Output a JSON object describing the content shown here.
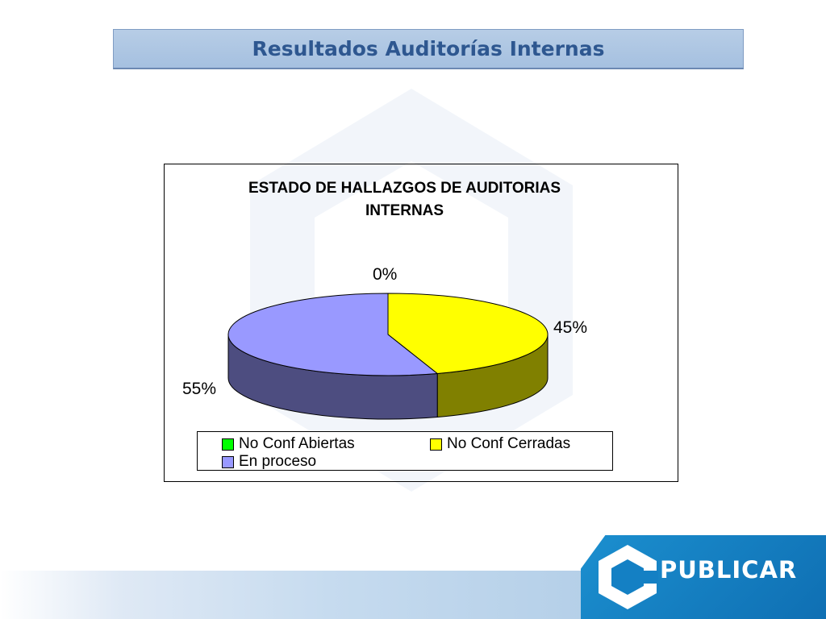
{
  "slide": {
    "title": "Resultados Auditorías Internas"
  },
  "brand": {
    "logo_text": "PUBLICAR",
    "colors": {
      "title_text": "#2e5790",
      "title_bar": "#a5c0e0",
      "logo_blue": "#1b8fcf"
    }
  },
  "chart_data": {
    "type": "pie",
    "title_lines": [
      "ESTADO DE HALLAZGOS DE AUDITORIAS",
      "INTERNAS"
    ],
    "three_d": true,
    "slices": [
      {
        "name": "No Conf Abiertas",
        "value": 0,
        "label": "0%",
        "color": "#00ff00",
        "side_color": "#008000"
      },
      {
        "name": "No Conf Cerradas",
        "value": 45,
        "label": "45%",
        "color": "#ffff00",
        "side_color": "#808000"
      },
      {
        "name": "En proceso",
        "value": 55,
        "label": "55%",
        "color": "#9999ff",
        "side_color": "#4d4d80"
      }
    ],
    "legend": {
      "placement": "bottom",
      "entries": [
        "No Conf Abiertas",
        "No Conf Cerradas",
        "En proceso"
      ]
    }
  }
}
